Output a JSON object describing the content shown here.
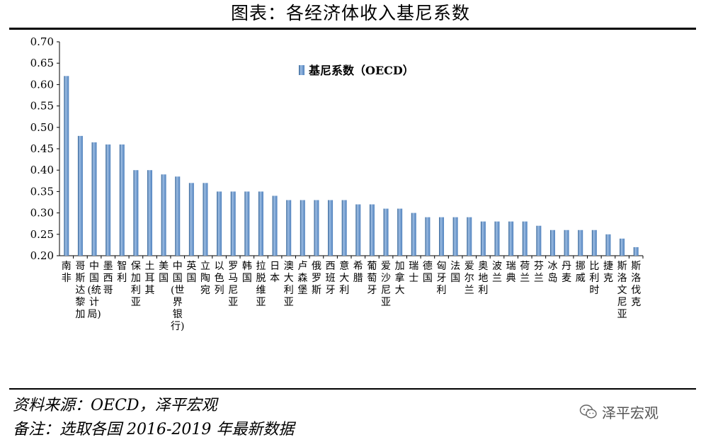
{
  "header": {
    "title": "图表：各经济体收入基尼系数"
  },
  "footer": {
    "source": "资料来源：OECD，泽平宏观",
    "note": "备注：选取各国 2016-2019 年最新数据"
  },
  "watermark": {
    "text": "泽平宏观",
    "icon": "wechat-icon"
  },
  "chart_data": {
    "type": "bar",
    "title": "",
    "xlabel": "",
    "ylabel": "",
    "ylim": [
      0.2,
      0.7
    ],
    "yticks": [
      "0.20",
      "0.25",
      "0.30",
      "0.35",
      "0.40",
      "0.45",
      "0.50",
      "0.55",
      "0.60",
      "0.65",
      "0.70"
    ],
    "legend": {
      "position": "top-center"
    },
    "grid": false,
    "colors": {
      "bar": "#4f81bd",
      "bar_light": "#9dbde3",
      "bar_dark": "#2e5f94"
    },
    "categories": [
      "南非",
      "哥斯达黎加",
      "中国(统计局)",
      "墨西哥",
      "智利",
      "保加利亚",
      "土耳其",
      "美国",
      "中国(世界银行)",
      "英国",
      "立陶宛",
      "以色列",
      "罗马尼亚",
      "韩国",
      "拉脱维亚",
      "日本",
      "澳大利亚",
      "卢森堡",
      "俄罗斯",
      "西班牙",
      "意大利",
      "希腊",
      "葡萄牙",
      "爱沙尼亚",
      "加拿大",
      "瑞士",
      "德国",
      "匈牙利",
      "法国",
      "爱尔兰",
      "奥地利",
      "波兰",
      "瑞典",
      "荷兰",
      "芬兰",
      "冰岛",
      "丹麦",
      "挪威",
      "比利时",
      "捷克",
      "斯洛文尼亚",
      "斯洛伐克"
    ],
    "category_lines": [
      [
        "南",
        "非"
      ],
      [
        "哥",
        "斯",
        "达",
        "黎",
        "加"
      ],
      [
        "中",
        "国",
        "(统",
        "计",
        "局)"
      ],
      [
        "墨",
        "西",
        "哥"
      ],
      [
        "智",
        "利"
      ],
      [
        "保",
        "加",
        "利",
        "亚"
      ],
      [
        "土",
        "耳",
        "其"
      ],
      [
        "美",
        "国"
      ],
      [
        "中",
        "国",
        "(世",
        "界",
        "银",
        "行)"
      ],
      [
        "英",
        "国"
      ],
      [
        "立",
        "陶",
        "宛"
      ],
      [
        "以",
        "色",
        "列"
      ],
      [
        "罗",
        "马",
        "尼",
        "亚"
      ],
      [
        "韩",
        "国"
      ],
      [
        "拉",
        "脱",
        "维",
        "亚"
      ],
      [
        "日",
        "本"
      ],
      [
        "澳",
        "大",
        "利",
        "亚"
      ],
      [
        "卢",
        "森",
        "堡"
      ],
      [
        "俄",
        "罗",
        "斯"
      ],
      [
        "西",
        "班",
        "牙"
      ],
      [
        "意",
        "大",
        "利"
      ],
      [
        "希",
        "腊"
      ],
      [
        "葡",
        "萄",
        "牙"
      ],
      [
        "爱",
        "沙",
        "尼",
        "亚"
      ],
      [
        "加",
        "拿",
        "大"
      ],
      [
        "瑞",
        "士"
      ],
      [
        "德",
        "国"
      ],
      [
        "匈",
        "牙",
        "利"
      ],
      [
        "法",
        "国"
      ],
      [
        "爱",
        "尔",
        "兰"
      ],
      [
        "奥",
        "地",
        "利"
      ],
      [
        "波",
        "兰"
      ],
      [
        "瑞",
        "典"
      ],
      [
        "荷",
        "兰"
      ],
      [
        "芬",
        "兰"
      ],
      [
        "冰",
        "岛"
      ],
      [
        "丹",
        "麦"
      ],
      [
        "挪",
        "威"
      ],
      [
        "比",
        "利",
        "时"
      ],
      [
        "捷",
        "克"
      ],
      [
        "斯",
        "洛",
        "文",
        "尼",
        "亚"
      ],
      [
        "斯",
        "洛",
        "伐",
        "克"
      ]
    ],
    "series": [
      {
        "name": "基尼系数（OECD）",
        "values": [
          0.62,
          0.48,
          0.465,
          0.46,
          0.46,
          0.4,
          0.4,
          0.39,
          0.385,
          0.37,
          0.37,
          0.35,
          0.35,
          0.35,
          0.35,
          0.34,
          0.33,
          0.33,
          0.33,
          0.33,
          0.33,
          0.32,
          0.32,
          0.31,
          0.31,
          0.3,
          0.29,
          0.29,
          0.29,
          0.29,
          0.28,
          0.28,
          0.28,
          0.28,
          0.27,
          0.26,
          0.26,
          0.26,
          0.26,
          0.25,
          0.24,
          0.22
        ]
      }
    ]
  }
}
